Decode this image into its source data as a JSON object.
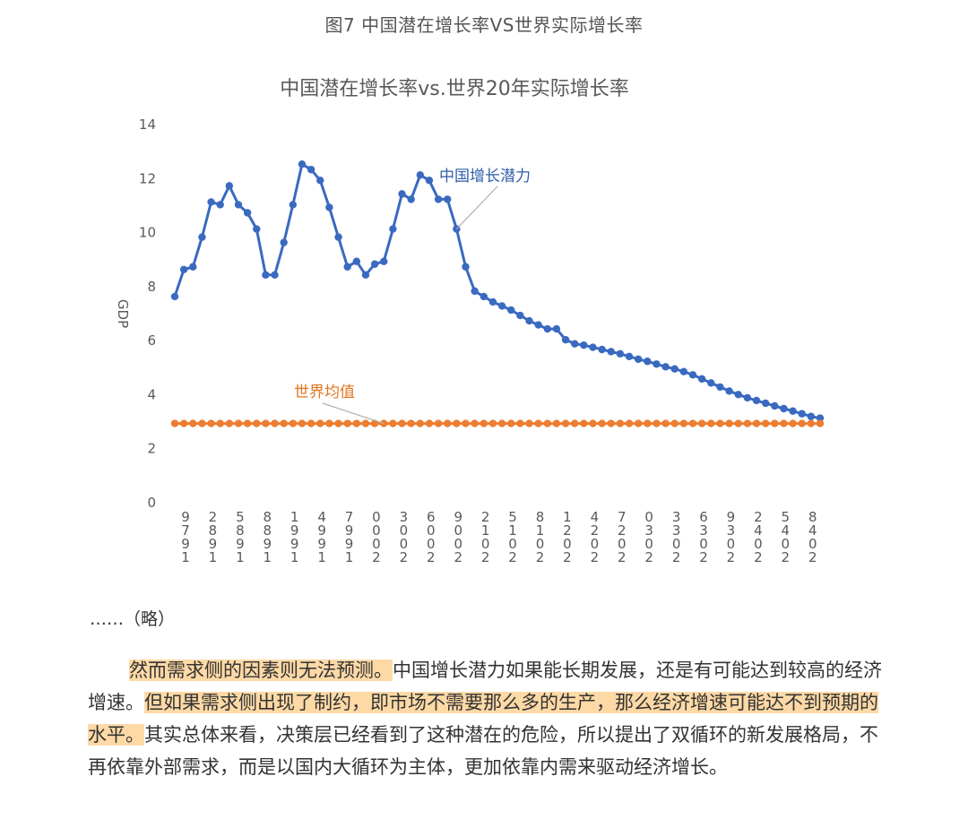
{
  "figure_caption": "图7 中国潜在增长率VS世界实际增长率",
  "chart_data": {
    "type": "line",
    "title": "中国潜在增长率vs.世界20年实际增长率",
    "ylabel": "GDP",
    "xlabel": "",
    "ylim": [
      0,
      14
    ],
    "yticks": [
      0,
      2,
      4,
      6,
      8,
      10,
      12,
      14
    ],
    "grid": false,
    "x": [
      1979,
      1980,
      1981,
      1982,
      1983,
      1984,
      1985,
      1986,
      1987,
      1988,
      1989,
      1990,
      1991,
      1992,
      1993,
      1994,
      1995,
      1996,
      1997,
      1998,
      1999,
      2000,
      2001,
      2002,
      2003,
      2004,
      2005,
      2006,
      2007,
      2008,
      2009,
      2010,
      2011,
      2012,
      2013,
      2014,
      2015,
      2016,
      2017,
      2018,
      2019,
      2020,
      2021,
      2022,
      2023,
      2024,
      2025,
      2026,
      2027,
      2028,
      2029,
      2030,
      2031,
      2032,
      2033,
      2034,
      2035,
      2036,
      2037,
      2038,
      2039,
      2040,
      2041,
      2042,
      2043,
      2044,
      2045,
      2046,
      2047,
      2048,
      2049,
      2050
    ],
    "xtick_labels": [
      "1979",
      "1982",
      "1985",
      "1988",
      "1991",
      "1994",
      "1997",
      "2000",
      "2003",
      "2006",
      "2009",
      "2012",
      "2015",
      "2018",
      "2021",
      "2024",
      "2027",
      "2030",
      "2033",
      "2036",
      "2039",
      "2042",
      "2045",
      "2048"
    ],
    "series": [
      {
        "name": "中国增长潜力",
        "color": "#3a6ac0",
        "values": [
          7.6,
          8.6,
          8.7,
          9.8,
          11.1,
          11.0,
          11.7,
          11.0,
          10.7,
          10.1,
          8.4,
          8.4,
          9.6,
          11.0,
          12.5,
          12.3,
          11.9,
          10.9,
          9.8,
          8.7,
          8.9,
          8.4,
          8.8,
          8.9,
          10.1,
          11.4,
          11.2,
          12.1,
          11.9,
          11.2,
          11.2,
          10.1,
          8.7,
          7.8,
          7.6,
          7.4,
          7.25,
          7.1,
          6.9,
          6.7,
          6.55,
          6.4,
          6.4,
          6.0,
          5.85,
          5.8,
          5.72,
          5.64,
          5.56,
          5.48,
          5.38,
          5.28,
          5.2,
          5.1,
          5.0,
          4.92,
          4.82,
          4.7,
          4.55,
          4.4,
          4.25,
          4.1,
          3.97,
          3.85,
          3.75,
          3.65,
          3.55,
          3.45,
          3.36,
          3.26,
          3.16,
          3.1
        ]
      },
      {
        "name": "世界均值",
        "color": "#ed7d31",
        "values": [
          2.9,
          2.9,
          2.9,
          2.9,
          2.9,
          2.9,
          2.9,
          2.9,
          2.9,
          2.9,
          2.9,
          2.9,
          2.9,
          2.9,
          2.9,
          2.9,
          2.9,
          2.9,
          2.9,
          2.9,
          2.9,
          2.9,
          2.9,
          2.9,
          2.9,
          2.9,
          2.9,
          2.9,
          2.9,
          2.9,
          2.9,
          2.9,
          2.9,
          2.9,
          2.9,
          2.9,
          2.9,
          2.9,
          2.9,
          2.9,
          2.9,
          2.9,
          2.9,
          2.9,
          2.9,
          2.9,
          2.9,
          2.9,
          2.9,
          2.9,
          2.9,
          2.9,
          2.9,
          2.9,
          2.9,
          2.9,
          2.9,
          2.9,
          2.9,
          2.9,
          2.9,
          2.9,
          2.9,
          2.9,
          2.9,
          2.9,
          2.9,
          2.9,
          2.9,
          2.9,
          2.9,
          2.9
        ]
      }
    ],
    "annotations": [
      {
        "text": "中国增长潜力",
        "series": 0
      },
      {
        "text": "世界均值",
        "series": 1
      }
    ]
  },
  "body": {
    "ellipsis": "……（略）",
    "para_segments": [
      {
        "text": "然而需求侧的因素则无法预测。",
        "highlight": true
      },
      {
        "text": "中国增长潜力如果能长期发展，还是有可能达到较高的经济增速。",
        "highlight": false
      },
      {
        "text": "但如果需求侧出现了制约，即市场不需要那么多的生产，那么经济增速可能达不到预期的水平。",
        "highlight": true
      },
      {
        "text": "其实总体来看，决策层已经看到了这种潜在的危险，所以提出了双循环的新发展格局，不再依靠外部需求，而是以国内大循环为主体，更加依靠内需来驱动经济增长。",
        "highlight": false
      }
    ]
  }
}
